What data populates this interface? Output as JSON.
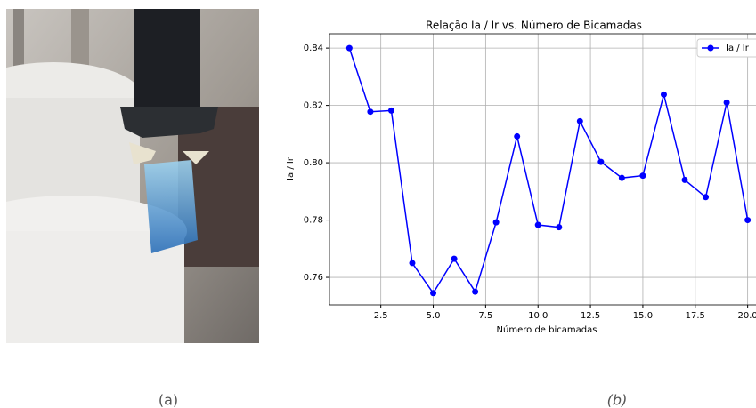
{
  "captions": [
    "(a)",
    "(b)"
  ],
  "chart_data": {
    "type": "line",
    "title": "Relação Ia / Ir vs. Número de Bicamadas",
    "xlabel": "Número de bicamadas",
    "ylabel": "Ia / Ir",
    "x": [
      1,
      2,
      3,
      4,
      5,
      6,
      7,
      8,
      9,
      10,
      11,
      12,
      13,
      14,
      15,
      16,
      17,
      18,
      19,
      20
    ],
    "series": [
      {
        "name": "Ia / Ir",
        "color": "#0000ff",
        "values": [
          0.84,
          0.8178,
          0.8182,
          0.765,
          0.7545,
          0.7665,
          0.755,
          0.7792,
          0.8092,
          0.7783,
          0.7775,
          0.8145,
          0.8003,
          0.7947,
          0.7955,
          0.8238,
          0.794,
          0.788,
          0.821,
          0.78
        ]
      }
    ],
    "xlim": [
      0.05,
      20.95
    ],
    "ylim": [
      0.7504,
      0.845
    ],
    "xticks": [
      2.5,
      {
        "value": 5,
        "label": "5.0"
      },
      7.5,
      {
        "value": 10,
        "label": "10.0"
      },
      12.5,
      {
        "value": 15,
        "label": "15.0"
      },
      17.5,
      {
        "value": 20,
        "label": "20.0"
      }
    ],
    "yticks": [
      0.76,
      0.78,
      {
        "value": 0.8,
        "label": "0.80"
      },
      0.82,
      0.84
    ],
    "grid": true,
    "legend": "upper right"
  }
}
